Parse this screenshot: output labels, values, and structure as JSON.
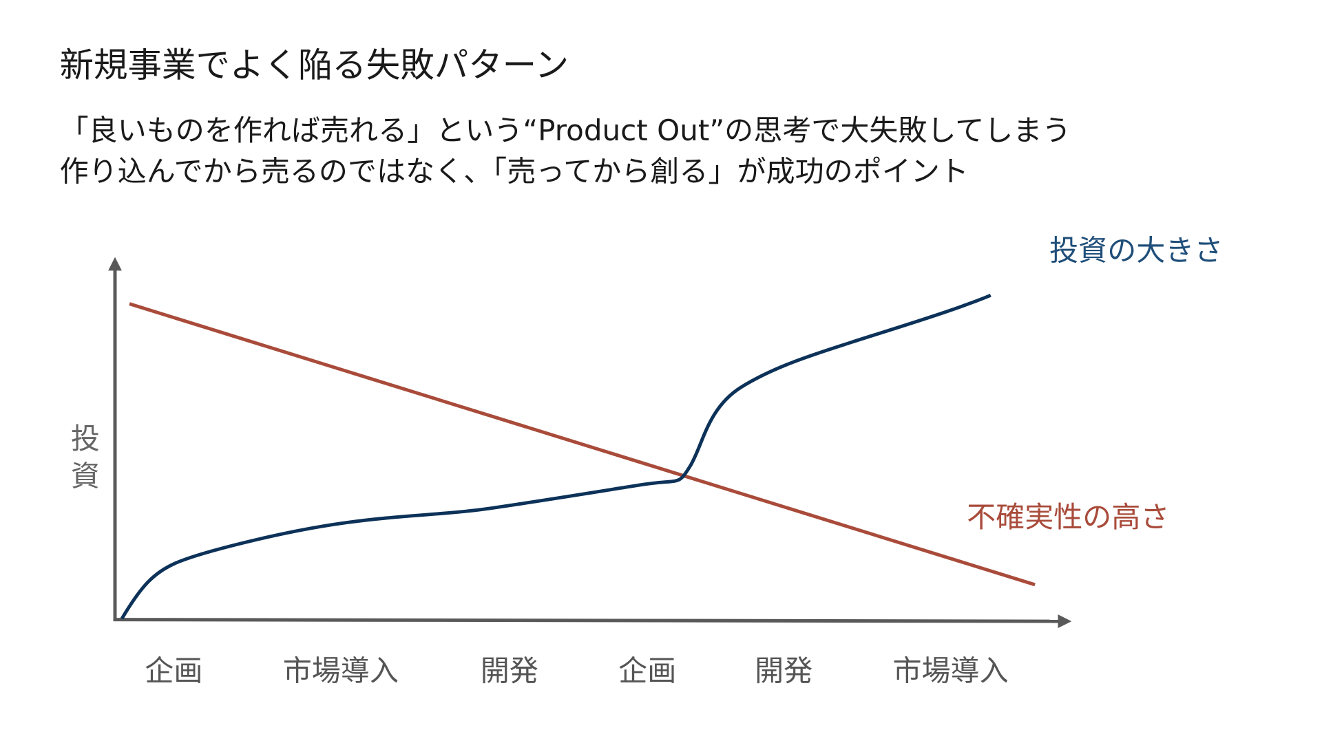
{
  "title": "新規事業でよく陥る失敗パターン",
  "subtitle": [
    "「良いものを作れば売れる」という“Product Out”の思考で大失敗してしまう",
    "作り込んでから売るのではなく、「売ってから創る」が成功のポイント"
  ],
  "diagram": {
    "y_axis_label": "投資",
    "investment_label": "投資の大きさ",
    "uncertainty_label": "不確実性の高さ",
    "stages": [
      "企画",
      "市場導入",
      "開発",
      "企画",
      "開発",
      "市場導入"
    ]
  }
}
